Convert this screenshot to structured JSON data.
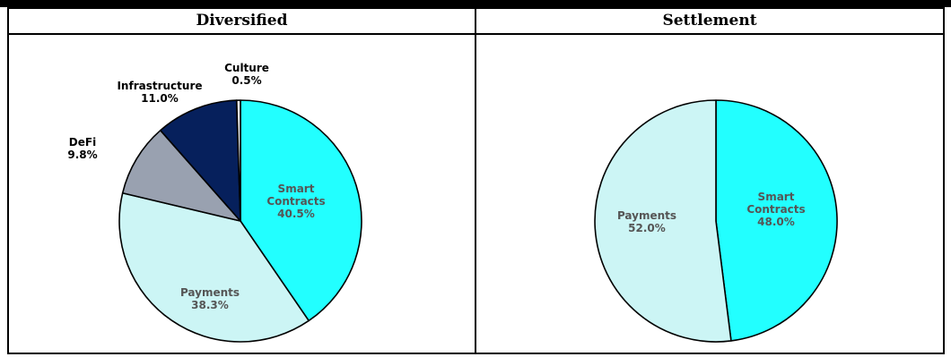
{
  "headers": {
    "left": "Diversified",
    "right": "Settlement"
  },
  "chart_data": [
    {
      "type": "pie",
      "title": "Diversified",
      "slices": [
        {
          "label": "Smart Contracts",
          "lines": [
            "Smart",
            "Contracts"
          ],
          "value": 40.5,
          "display": "40.5%",
          "color": "#22FFFF"
        },
        {
          "label": "Payments",
          "lines": [
            "Payments"
          ],
          "value": 38.3,
          "display": "38.3%",
          "color": "#CCF5F5"
        },
        {
          "label": "DeFi",
          "lines": [
            "DeFi"
          ],
          "value": 9.8,
          "display": "9.8%",
          "color": "#99A1B0"
        },
        {
          "label": "Infrastructure",
          "lines": [
            "Infrastructure"
          ],
          "value": 11.0,
          "display": "11.0%",
          "color": "#06205C"
        },
        {
          "label": "Culture",
          "lines": [
            "Culture"
          ],
          "value": 0.5,
          "display": "0.5%",
          "color": "#F2F2F2"
        }
      ]
    },
    {
      "type": "pie",
      "title": "Settlement",
      "slices": [
        {
          "label": "Smart Contracts",
          "lines": [
            "Smart",
            "Contracts"
          ],
          "value": 48.0,
          "display": "48.0%",
          "color": "#22FFFF"
        },
        {
          "label": "Payments",
          "lines": [
            "Payments"
          ],
          "value": 52.0,
          "display": "52.0%",
          "color": "#CCF5F5"
        }
      ]
    }
  ]
}
